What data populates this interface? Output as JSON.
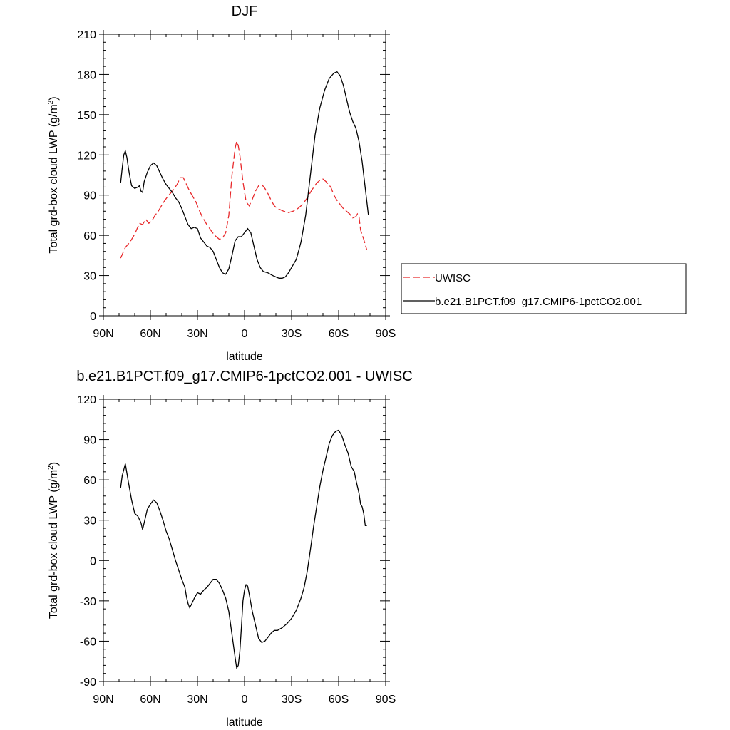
{
  "chart_data": [
    {
      "type": "line",
      "title": "DJF",
      "xlabel": "latitude",
      "ylabel": "Total grd-box cloud LWP",
      "ylabel_unit_pre": "(g/m",
      "ylabel_unit_sup": "2",
      "ylabel_unit_post": ")",
      "xlim": [
        90,
        -90
      ],
      "ylim": [
        0,
        210
      ],
      "x_ticks": [
        {
          "value": 90,
          "label": "90N"
        },
        {
          "value": 60,
          "label": "60N"
        },
        {
          "value": 30,
          "label": "30N"
        },
        {
          "value": 0,
          "label": "0"
        },
        {
          "value": -30,
          "label": "30S"
        },
        {
          "value": -60,
          "label": "60S"
        },
        {
          "value": -90,
          "label": "90S"
        }
      ],
      "y_ticks": [
        0,
        30,
        60,
        90,
        120,
        150,
        180,
        210
      ],
      "legend_position": "right",
      "series": [
        {
          "name": "UWISC",
          "color": "#e8292b",
          "dash": "dashed",
          "points": [
            [
              79,
              43
            ],
            [
              76,
              51
            ],
            [
              73,
              55
            ],
            [
              70,
              61
            ],
            [
              67,
              69
            ],
            [
              65,
              68
            ],
            [
              63,
              72
            ],
            [
              61,
              69
            ],
            [
              59,
              71
            ],
            [
              57,
              75
            ],
            [
              55,
              78
            ],
            [
              52,
              84
            ],
            [
              49,
              89
            ],
            [
              46,
              93
            ],
            [
              43,
              98
            ],
            [
              41,
              103
            ],
            [
              39,
              103
            ],
            [
              37,
              98
            ],
            [
              35,
              93
            ],
            [
              33,
              89
            ],
            [
              31,
              85
            ],
            [
              29,
              79
            ],
            [
              27,
              74
            ],
            [
              24,
              68
            ],
            [
              21,
              63
            ],
            [
              19,
              60
            ],
            [
              16,
              57
            ],
            [
              14,
              58
            ],
            [
              12,
              62
            ],
            [
              10,
              75
            ],
            [
              8,
              105
            ],
            [
              6,
              125
            ],
            [
              5,
              130
            ],
            [
              4,
              127
            ],
            [
              3,
              120
            ],
            [
              1,
              100
            ],
            [
              -1,
              85
            ],
            [
              -3,
              82
            ],
            [
              -5,
              87
            ],
            [
              -7,
              93
            ],
            [
              -9,
              97
            ],
            [
              -11,
              98
            ],
            [
              -13,
              95
            ],
            [
              -15,
              91
            ],
            [
              -17,
              86
            ],
            [
              -19,
              82
            ],
            [
              -21,
              80
            ],
            [
              -23,
              79
            ],
            [
              -25,
              78
            ],
            [
              -28,
              77
            ],
            [
              -31,
              78
            ],
            [
              -34,
              80
            ],
            [
              -37,
              83
            ],
            [
              -40,
              88
            ],
            [
              -43,
              94
            ],
            [
              -46,
              99
            ],
            [
              -48,
              101
            ],
            [
              -50,
              102
            ],
            [
              -52,
              100
            ],
            [
              -55,
              96
            ],
            [
              -57,
              90
            ],
            [
              -59,
              86
            ],
            [
              -61,
              83
            ],
            [
              -63,
              80
            ],
            [
              -65,
              78
            ],
            [
              -67,
              76
            ],
            [
              -69,
              73
            ],
            [
              -71,
              74
            ],
            [
              -72,
              76
            ],
            [
              -73,
              74
            ],
            [
              -74,
              64
            ],
            [
              -76,
              57
            ],
            [
              -78,
              49
            ]
          ]
        },
        {
          "name": "b.e21.B1PCT.f09_g17.CMIP6-1pctCO2.001",
          "color": "#000000",
          "dash": "solid",
          "points": [
            [
              79,
              99
            ],
            [
              78,
              110
            ],
            [
              77,
              120
            ],
            [
              76,
              123
            ],
            [
              75,
              118
            ],
            [
              74,
              110
            ],
            [
              73,
              103
            ],
            [
              72,
              97
            ],
            [
              70,
              95
            ],
            [
              68,
              96
            ],
            [
              67,
              97
            ],
            [
              66,
              93
            ],
            [
              65,
              92
            ],
            [
              64,
              100
            ],
            [
              62,
              107
            ],
            [
              60,
              112
            ],
            [
              58,
              114
            ],
            [
              56,
              112
            ],
            [
              54,
              107
            ],
            [
              52,
              102
            ],
            [
              50,
              98
            ],
            [
              48,
              95
            ],
            [
              46,
              92
            ],
            [
              44,
              88
            ],
            [
              42,
              85
            ],
            [
              40,
              80
            ],
            [
              38,
              74
            ],
            [
              36,
              68
            ],
            [
              34,
              65
            ],
            [
              32,
              66
            ],
            [
              30,
              65
            ],
            [
              28,
              58
            ],
            [
              26,
              55
            ],
            [
              24,
              52
            ],
            [
              22,
              51
            ],
            [
              20,
              48
            ],
            [
              18,
              42
            ],
            [
              16,
              36
            ],
            [
              14,
              32
            ],
            [
              12,
              31
            ],
            [
              10,
              35
            ],
            [
              8,
              45
            ],
            [
              6,
              56
            ],
            [
              4,
              59
            ],
            [
              2,
              59
            ],
            [
              0,
              62
            ],
            [
              -2,
              65
            ],
            [
              -4,
              62
            ],
            [
              -6,
              52
            ],
            [
              -8,
              42
            ],
            [
              -10,
              36
            ],
            [
              -12,
              33
            ],
            [
              -15,
              32
            ],
            [
              -18,
              30
            ],
            [
              -20,
              29
            ],
            [
              -22,
              28
            ],
            [
              -24,
              28
            ],
            [
              -26,
              29
            ],
            [
              -28,
              32
            ],
            [
              -30,
              36
            ],
            [
              -33,
              42
            ],
            [
              -36,
              55
            ],
            [
              -39,
              75
            ],
            [
              -42,
              105
            ],
            [
              -45,
              135
            ],
            [
              -48,
              155
            ],
            [
              -51,
              168
            ],
            [
              -54,
              177
            ],
            [
              -57,
              181
            ],
            [
              -59,
              182
            ],
            [
              -61,
              179
            ],
            [
              -63,
              172
            ],
            [
              -65,
              162
            ],
            [
              -67,
              152
            ],
            [
              -69,
              145
            ],
            [
              -71,
              140
            ],
            [
              -73,
              130
            ],
            [
              -75,
              115
            ],
            [
              -77,
              95
            ],
            [
              -79,
              75
            ]
          ]
        }
      ]
    },
    {
      "type": "line",
      "title": "b.e21.B1PCT.f09_g17.CMIP6-1pctCO2.001 - UWISC",
      "xlabel": "latitude",
      "ylabel": "Total grd-box cloud LWP",
      "ylabel_unit_pre": "(g/m",
      "ylabel_unit_sup": "2",
      "ylabel_unit_post": ")",
      "xlim": [
        90,
        -90
      ],
      "ylim": [
        -90,
        120
      ],
      "x_ticks": [
        {
          "value": 90,
          "label": "90N"
        },
        {
          "value": 60,
          "label": "60N"
        },
        {
          "value": 30,
          "label": "30N"
        },
        {
          "value": 0,
          "label": "0"
        },
        {
          "value": -30,
          "label": "30S"
        },
        {
          "value": -60,
          "label": "60S"
        },
        {
          "value": -90,
          "label": "90S"
        }
      ],
      "y_ticks": [
        -90,
        -60,
        -30,
        0,
        30,
        60,
        90,
        120
      ],
      "series": [
        {
          "color": "#000000",
          "dash": "solid",
          "points": [
            [
              79,
              54
            ],
            [
              78,
              63
            ],
            [
              76,
              72
            ],
            [
              74,
              58
            ],
            [
              72,
              45
            ],
            [
              70,
              35
            ],
            [
              68,
              33
            ],
            [
              66,
              28
            ],
            [
              65,
              23
            ],
            [
              64,
              28
            ],
            [
              62,
              38
            ],
            [
              60,
              42
            ],
            [
              58,
              45
            ],
            [
              56,
              43
            ],
            [
              54,
              37
            ],
            [
              52,
              30
            ],
            [
              50,
              22
            ],
            [
              48,
              16
            ],
            [
              46,
              8
            ],
            [
              44,
              0
            ],
            [
              42,
              -7
            ],
            [
              40,
              -14
            ],
            [
              38,
              -20
            ],
            [
              37,
              -27
            ],
            [
              36,
              -32
            ],
            [
              35,
              -35
            ],
            [
              34,
              -33
            ],
            [
              32,
              -28
            ],
            [
              30,
              -24
            ],
            [
              28,
              -25
            ],
            [
              26,
              -22
            ],
            [
              24,
              -20
            ],
            [
              22,
              -17
            ],
            [
              20,
              -14
            ],
            [
              18,
              -14
            ],
            [
              16,
              -17
            ],
            [
              14,
              -22
            ],
            [
              12,
              -28
            ],
            [
              10,
              -38
            ],
            [
              8,
              -55
            ],
            [
              6,
              -72
            ],
            [
              5,
              -80
            ],
            [
              4,
              -78
            ],
            [
              3,
              -68
            ],
            [
              2,
              -50
            ],
            [
              1,
              -30
            ],
            [
              0,
              -22
            ],
            [
              -1,
              -18
            ],
            [
              -2,
              -19
            ],
            [
              -3,
              -25
            ],
            [
              -5,
              -38
            ],
            [
              -7,
              -48
            ],
            [
              -9,
              -58
            ],
            [
              -11,
              -61
            ],
            [
              -13,
              -60
            ],
            [
              -15,
              -57
            ],
            [
              -17,
              -54
            ],
            [
              -19,
              -52
            ],
            [
              -21,
              -52
            ],
            [
              -24,
              -50
            ],
            [
              -27,
              -47
            ],
            [
              -30,
              -43
            ],
            [
              -33,
              -37
            ],
            [
              -36,
              -28
            ],
            [
              -38,
              -20
            ],
            [
              -40,
              -8
            ],
            [
              -42,
              8
            ],
            [
              -44,
              25
            ],
            [
              -46,
              40
            ],
            [
              -48,
              55
            ],
            [
              -50,
              67
            ],
            [
              -52,
              77
            ],
            [
              -54,
              87
            ],
            [
              -56,
              93
            ],
            [
              -58,
              96
            ],
            [
              -60,
              97
            ],
            [
              -62,
              93
            ],
            [
              -64,
              86
            ],
            [
              -66,
              80
            ],
            [
              -68,
              70
            ],
            [
              -70,
              66
            ],
            [
              -71,
              60
            ],
            [
              -73,
              50
            ],
            [
              -74,
              42
            ],
            [
              -75,
              40
            ],
            [
              -76,
              35
            ],
            [
              -77,
              26
            ],
            [
              -78,
              26
            ]
          ]
        }
      ]
    }
  ]
}
